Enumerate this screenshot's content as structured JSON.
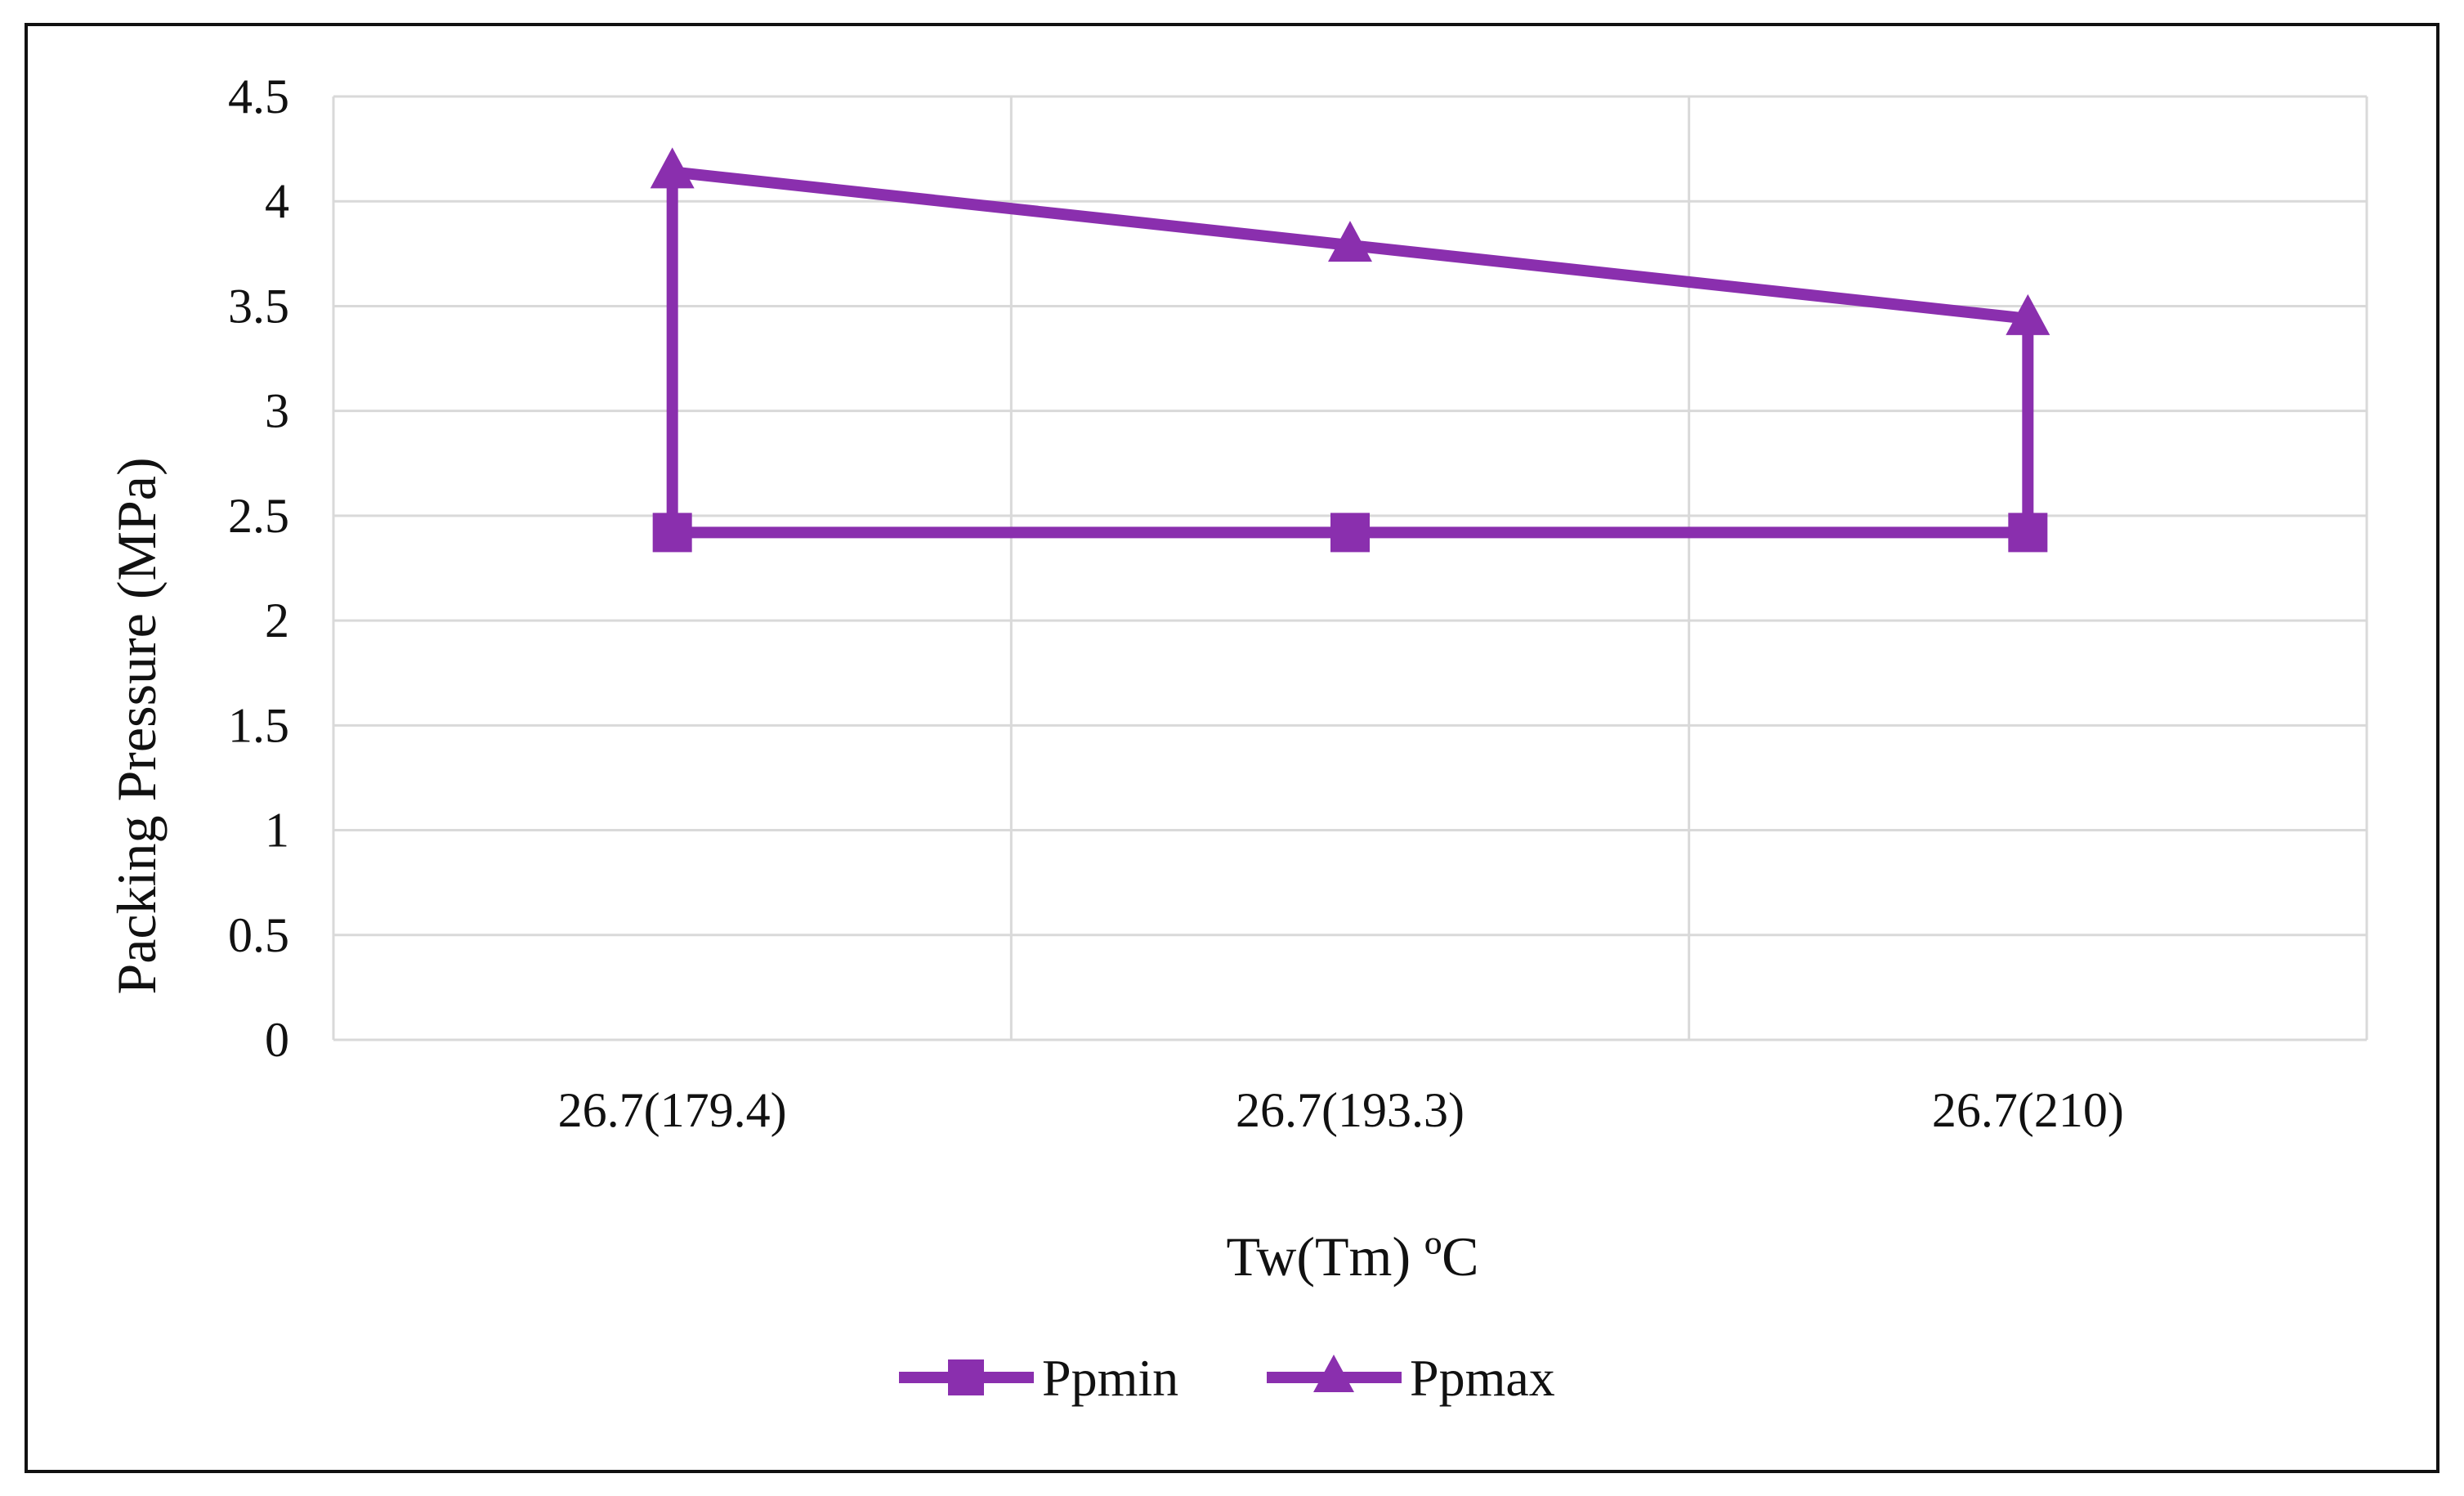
{
  "chart_data": {
    "type": "line",
    "categories": [
      "26.7(179.4)",
      "26.7(193.3)",
      "26.7(210)"
    ],
    "series": [
      {
        "name": "Ppmin",
        "values": [
          2.42,
          2.42,
          2.42
        ],
        "marker": "square",
        "color": "#8a2fae"
      },
      {
        "name": "Ppmax",
        "values": [
          4.14,
          3.79,
          3.44
        ],
        "marker": "triangle",
        "color": "#8a2fae"
      }
    ],
    "connectors": [
      {
        "category_index": 0,
        "from": 2.42,
        "to": 4.14
      },
      {
        "category_index": 2,
        "from": 2.42,
        "to": 3.44
      }
    ],
    "xlabel": "Tw(Tm) ºC",
    "ylabel": "Packing Pressure (MPa)",
    "ylim": [
      0,
      4.5
    ],
    "yticks": [
      "0",
      "0.5",
      "1",
      "1.5",
      "2",
      "2.5",
      "3",
      "3.5",
      "4",
      "4.5"
    ],
    "grid": true,
    "legend": "bottom-center",
    "colors": {
      "grid": "#d9d9d9",
      "line": "#8a2fae",
      "text": "#111111"
    }
  }
}
